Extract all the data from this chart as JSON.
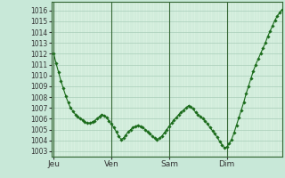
{
  "background_color": "#c8e8d8",
  "plot_bg_color": "#d8f0e0",
  "line_color": "#1a6b1a",
  "marker_color": "#1a6b1a",
  "grid_major_color": "#a8cdb8",
  "grid_minor_color": "#b8ddc8",
  "yticks": [
    1003,
    1004,
    1005,
    1006,
    1007,
    1008,
    1009,
    1010,
    1011,
    1012,
    1013,
    1014,
    1015,
    1016
  ],
  "ylim": [
    1002.5,
    1016.8
  ],
  "xtick_labels": [
    "Jeu",
    "Ven",
    "Sam",
    "Dim"
  ],
  "xtick_positions": [
    0,
    24,
    48,
    72
  ],
  "xlim": [
    -1,
    95
  ],
  "vline_color": "#336633",
  "spine_color": "#336633",
  "tick_color": "#333333",
  "data_x": [
    0,
    1,
    2,
    3,
    4,
    5,
    6,
    7,
    8,
    9,
    10,
    11,
    12,
    13,
    14,
    15,
    16,
    17,
    18,
    19,
    20,
    21,
    22,
    23,
    24,
    25,
    26,
    27,
    28,
    29,
    30,
    31,
    32,
    33,
    34,
    35,
    36,
    37,
    38,
    39,
    40,
    41,
    42,
    43,
    44,
    45,
    46,
    47,
    48,
    49,
    50,
    51,
    52,
    53,
    54,
    55,
    56,
    57,
    58,
    59,
    60,
    61,
    62,
    63,
    64,
    65,
    66,
    67,
    68,
    69,
    70,
    71,
    72,
    73,
    74,
    75,
    76,
    77,
    78,
    79,
    80,
    81,
    82,
    83,
    84,
    85,
    86,
    87,
    88,
    89,
    90,
    91,
    92,
    93,
    94,
    95
  ],
  "data_y": [
    1012.0,
    1011.1,
    1010.3,
    1009.5,
    1008.8,
    1008.1,
    1007.5,
    1007.0,
    1006.7,
    1006.4,
    1006.2,
    1006.0,
    1005.9,
    1005.7,
    1005.6,
    1005.6,
    1005.7,
    1005.8,
    1006.0,
    1006.2,
    1006.4,
    1006.3,
    1006.1,
    1005.8,
    1005.5,
    1005.2,
    1004.8,
    1004.4,
    1004.1,
    1004.2,
    1004.5,
    1004.8,
    1005.0,
    1005.2,
    1005.3,
    1005.4,
    1005.3,
    1005.2,
    1005.0,
    1004.8,
    1004.6,
    1004.4,
    1004.2,
    1004.1,
    1004.2,
    1004.4,
    1004.7,
    1005.0,
    1005.3,
    1005.6,
    1005.9,
    1006.1,
    1006.4,
    1006.6,
    1006.8,
    1007.0,
    1007.2,
    1007.1,
    1006.9,
    1006.6,
    1006.4,
    1006.2,
    1006.0,
    1005.8,
    1005.5,
    1005.2,
    1004.9,
    1004.6,
    1004.3,
    1003.9,
    1003.6,
    1003.3,
    1003.4,
    1003.7,
    1004.1,
    1004.7,
    1005.4,
    1006.1,
    1006.8,
    1007.5,
    1008.3,
    1009.0,
    1009.7,
    1010.4,
    1011.0,
    1011.5,
    1012.0,
    1012.5,
    1013.0,
    1013.6,
    1014.1,
    1014.6,
    1015.1,
    1015.5,
    1015.8,
    1016.1
  ]
}
